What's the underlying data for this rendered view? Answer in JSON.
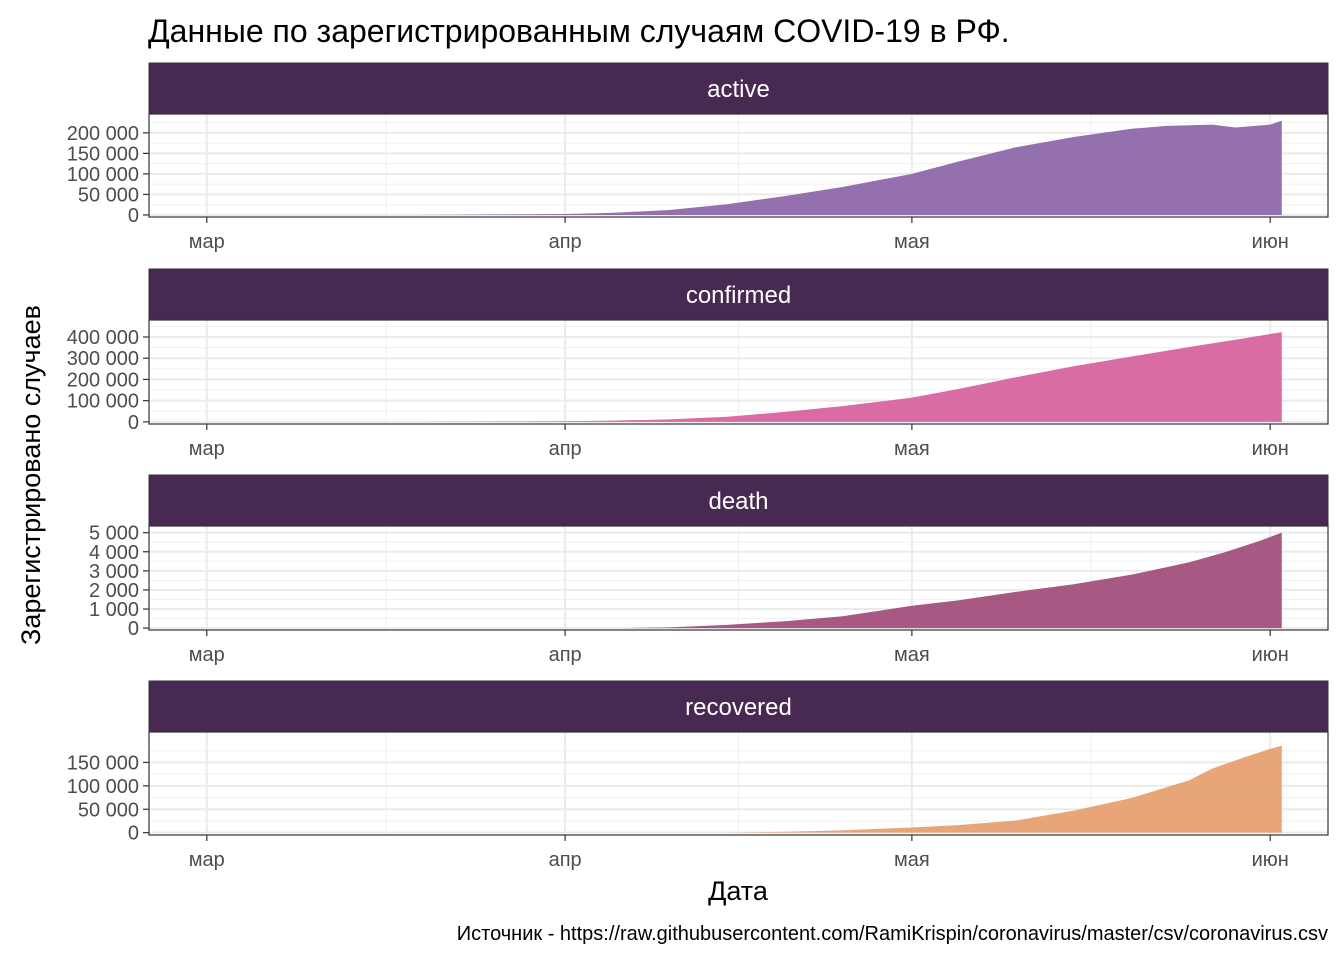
{
  "title": "Данные по зарегистрированным случаям COVID-19 в РФ.",
  "caption": "Источник - https://raw.githubusercontent.com/RamiKrispin/coronavirus/master/csv/coronavirus.csv",
  "chart_data": {
    "type": "area",
    "xlabel": "Дата",
    "ylabel": "Зарегистрировано случаев",
    "x_ticks": [
      "мар",
      "апр",
      "мая",
      "июн"
    ],
    "x_tick_dates": [
      "2020-03-01",
      "2020-04-01",
      "2020-05-01",
      "2020-06-01"
    ],
    "xlim": [
      "2020-02-25",
      "2020-06-06"
    ],
    "panel_header_color": "#472952",
    "grid": true,
    "panels": [
      {
        "name": "active",
        "color": "#8c64a8",
        "ylim": [
          -5000,
          246000
        ],
        "y_ticks": [
          0,
          50000,
          100000,
          150000,
          200000
        ],
        "y_tick_labels": [
          "0",
          "50 000",
          "100 000",
          "150 000",
          "200 000"
        ],
        "points": [
          [
            "2020-03-19",
            0
          ],
          [
            "2020-04-01",
            2200
          ],
          [
            "2020-04-05",
            5000
          ],
          [
            "2020-04-10",
            12000
          ],
          [
            "2020-04-15",
            26000
          ],
          [
            "2020-04-20",
            46000
          ],
          [
            "2020-04-25",
            68000
          ],
          [
            "2020-05-01",
            100000
          ],
          [
            "2020-05-05",
            130000
          ],
          [
            "2020-05-10",
            165000
          ],
          [
            "2020-05-15",
            190000
          ],
          [
            "2020-05-20",
            210000
          ],
          [
            "2020-05-23",
            217000
          ],
          [
            "2020-05-27",
            220000
          ],
          [
            "2020-05-29",
            213000
          ],
          [
            "2020-06-01",
            220000
          ],
          [
            "2020-06-02",
            230000
          ],
          [
            "2020-06-02",
            232000
          ]
        ]
      },
      {
        "name": "confirmed",
        "color": "#d6609b",
        "ylim": [
          -10000,
          480000
        ],
        "y_ticks": [
          0,
          100000,
          200000,
          300000,
          400000
        ],
        "y_tick_labels": [
          "0",
          "100 000",
          "200 000",
          "300 000",
          "400 000"
        ],
        "points": [
          [
            "2020-03-19",
            0
          ],
          [
            "2020-04-01",
            2800
          ],
          [
            "2020-04-05",
            6000
          ],
          [
            "2020-04-10",
            12000
          ],
          [
            "2020-04-15",
            24000
          ],
          [
            "2020-04-20",
            47000
          ],
          [
            "2020-04-25",
            74000
          ],
          [
            "2020-05-01",
            114000
          ],
          [
            "2020-05-05",
            155000
          ],
          [
            "2020-05-10",
            210000
          ],
          [
            "2020-05-15",
            262000
          ],
          [
            "2020-05-20",
            308000
          ],
          [
            "2020-05-25",
            353000
          ],
          [
            "2020-05-30",
            396000
          ],
          [
            "2020-06-02",
            423000
          ]
        ]
      },
      {
        "name": "death",
        "color": "#a04a78",
        "ylim": [
          -100,
          5350
        ],
        "y_ticks": [
          0,
          1000,
          2000,
          3000,
          4000,
          5000
        ],
        "y_tick_labels": [
          "0",
          "1 000",
          "2 000",
          "3 000",
          "4 000",
          "5 000"
        ],
        "points": [
          [
            "2020-04-06",
            0
          ],
          [
            "2020-04-10",
            40
          ],
          [
            "2020-04-15",
            170
          ],
          [
            "2020-04-20",
            360
          ],
          [
            "2020-04-25",
            620
          ],
          [
            "2020-05-01",
            1170
          ],
          [
            "2020-05-05",
            1450
          ],
          [
            "2020-05-10",
            1900
          ],
          [
            "2020-05-15",
            2300
          ],
          [
            "2020-05-20",
            2800
          ],
          [
            "2020-05-25",
            3450
          ],
          [
            "2020-05-28",
            3960
          ],
          [
            "2020-05-31",
            4550
          ],
          [
            "2020-06-02",
            5000
          ]
        ]
      },
      {
        "name": "recovered",
        "color": "#e69d6b",
        "ylim": [
          -5000,
          215000
        ],
        "y_ticks": [
          0,
          50000,
          100000,
          150000
        ],
        "y_tick_labels": [
          "0",
          "50 000",
          "100 000",
          "150 000"
        ],
        "points": [
          [
            "2020-04-15",
            0
          ],
          [
            "2020-04-20",
            2000
          ],
          [
            "2020-04-25",
            5000
          ],
          [
            "2020-05-01",
            11000
          ],
          [
            "2020-05-05",
            16000
          ],
          [
            "2020-05-10",
            26000
          ],
          [
            "2020-05-15",
            47000
          ],
          [
            "2020-05-20",
            74000
          ],
          [
            "2020-05-25",
            112000
          ],
          [
            "2020-05-27",
            137000
          ],
          [
            "2020-05-30",
            163000
          ],
          [
            "2020-06-01",
            179000
          ],
          [
            "2020-06-02",
            186000
          ]
        ]
      }
    ]
  }
}
